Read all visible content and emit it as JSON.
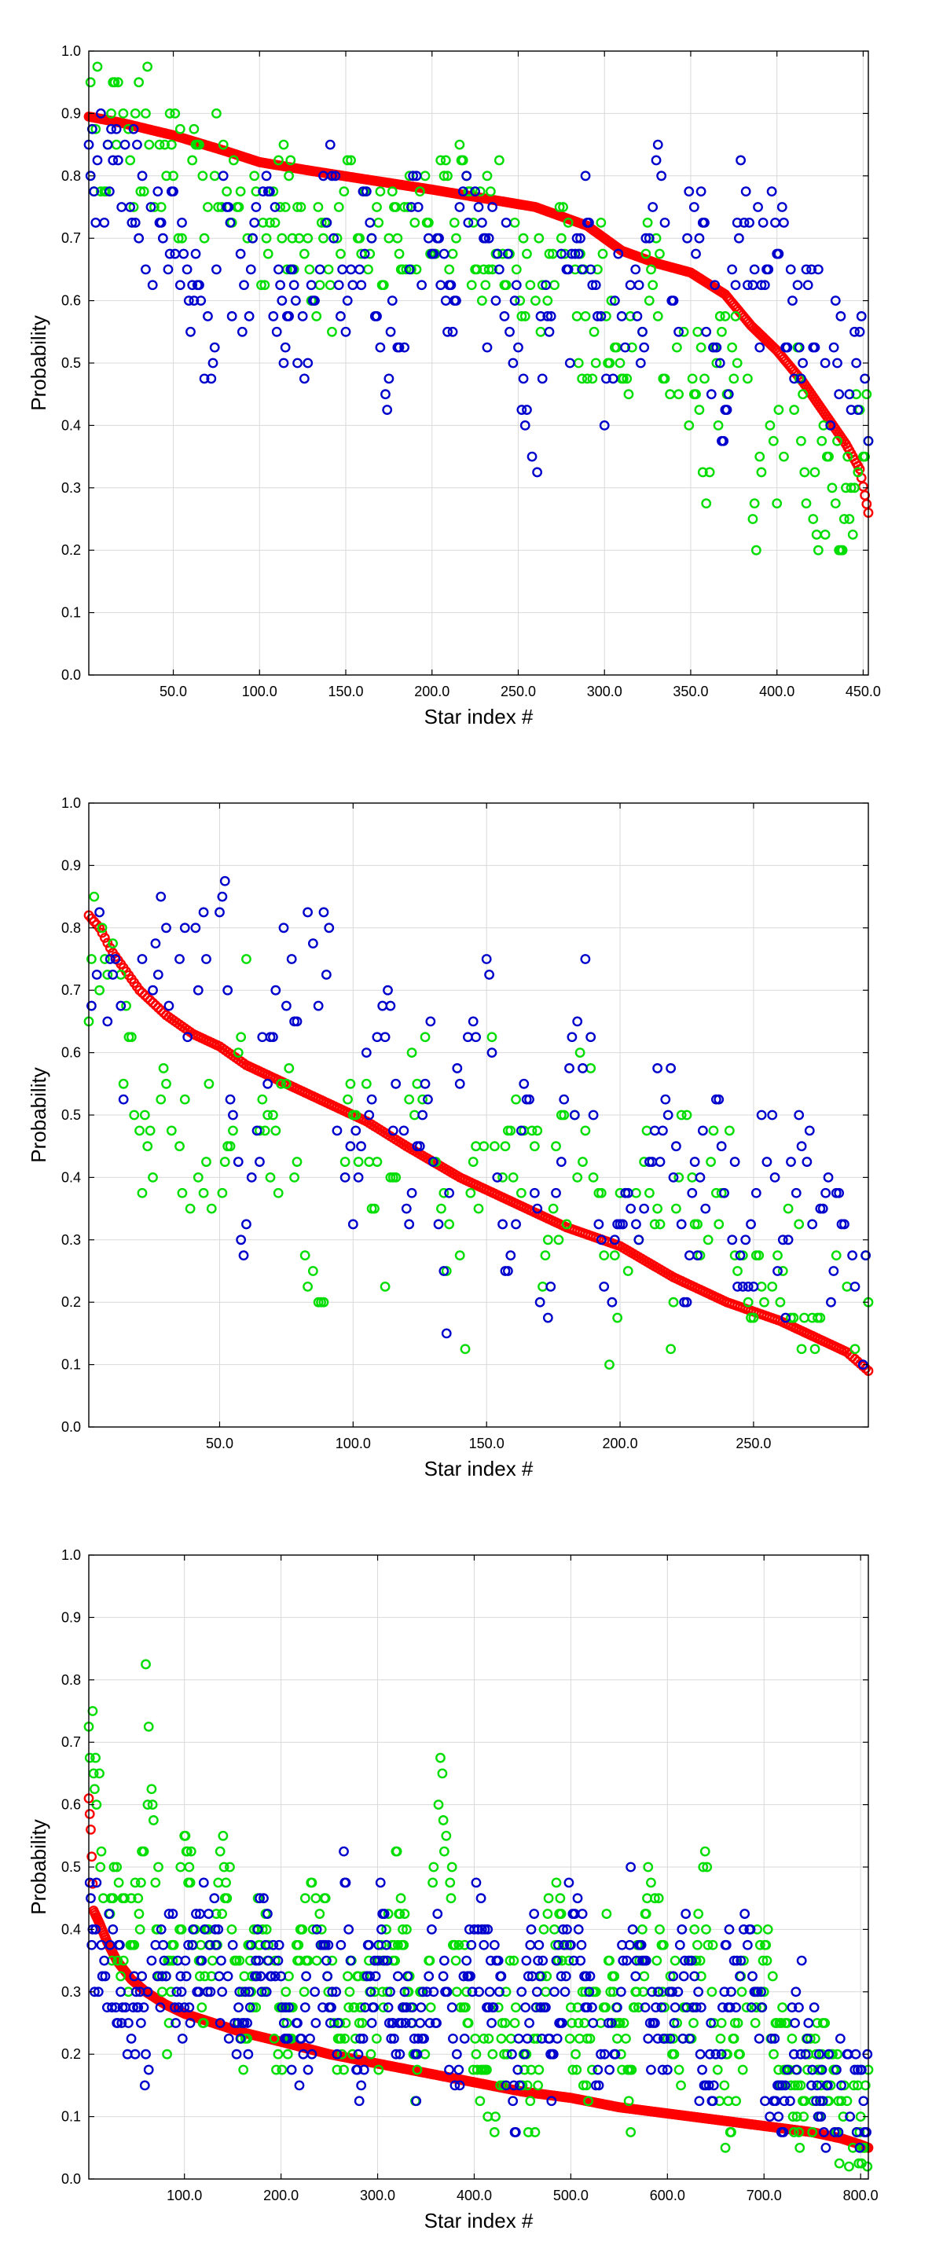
{
  "chart_data": [
    {
      "type": "scatter",
      "xlabel": "Star index #",
      "ylabel": "Probability",
      "xlim": [
        1,
        453
      ],
      "ylim": [
        0,
        1
      ],
      "xticks": [
        50,
        100,
        150,
        200,
        250,
        300,
        350,
        400,
        450
      ],
      "xtick_labels": [
        "50.0",
        "100.0",
        "150.0",
        "200.0",
        "250.0",
        "300.0",
        "350.0",
        "400.0",
        "450.0"
      ],
      "yticks": [
        0,
        0.1,
        0.2,
        0.3,
        0.4,
        0.5,
        0.6,
        0.7,
        0.8,
        0.9,
        1.0
      ],
      "ytick_labels": [
        "0.0",
        "0.1",
        "0.2",
        "0.3",
        "0.4",
        "0.5",
        "0.6",
        "0.7",
        "0.8",
        "0.9",
        "1.0"
      ],
      "grid": true,
      "n_points": 453,
      "series": [
        {
          "color": "#ff0000",
          "marker": "circle-open",
          "x": [
            1,
            20,
            50,
            80,
            100,
            130,
            160,
            200,
            230,
            260,
            290,
            310,
            330,
            350,
            370,
            385,
            400,
            415,
            430,
            440,
            448,
            453
          ],
          "y": [
            0.895,
            0.885,
            0.865,
            0.84,
            0.822,
            0.808,
            0.795,
            0.778,
            0.764,
            0.75,
            0.72,
            0.68,
            0.66,
            0.645,
            0.61,
            0.56,
            0.52,
            0.47,
            0.41,
            0.37,
            0.33,
            0.26
          ]
        },
        {
          "color": "#00dd00",
          "marker": "circle-open",
          "x": [
            1,
            10,
            20,
            30,
            40,
            50,
            60,
            70,
            80,
            90,
            100,
            110,
            120,
            130,
            140,
            150,
            160,
            170,
            180,
            190,
            200,
            210,
            220,
            230,
            240,
            250,
            260,
            270,
            280,
            290,
            300,
            310,
            320,
            330,
            340,
            350,
            360,
            370,
            380,
            390,
            400,
            410,
            420,
            430,
            440,
            450
          ],
          "y": [
            0.875,
            0.87,
            0.86,
            0.86,
            0.86,
            0.82,
            0.79,
            0.8,
            0.82,
            0.7,
            0.68,
            0.79,
            0.74,
            0.69,
            0.62,
            0.72,
            0.78,
            0.68,
            0.73,
            0.75,
            0.7,
            0.72,
            0.75,
            0.69,
            0.74,
            0.68,
            0.6,
            0.7,
            0.62,
            0.55,
            0.63,
            0.41,
            0.6,
            0.64,
            0.45,
            0.5,
            0.36,
            0.55,
            0.45,
            0.27,
            0.36,
            0.45,
            0.32,
            0.28,
            0.3,
            0.36
          ]
        },
        {
          "color": "#0000cc",
          "marker": "circle-open",
          "x": [
            1,
            10,
            20,
            30,
            40,
            50,
            60,
            70,
            80,
            90,
            100,
            110,
            120,
            130,
            140,
            150,
            160,
            170,
            180,
            190,
            200,
            210,
            220,
            230,
            240,
            250,
            260,
            270,
            280,
            290,
            300,
            310,
            320,
            330,
            340,
            350,
            360,
            370,
            380,
            390,
            400,
            410,
            420,
            430,
            440,
            450
          ],
          "y": [
            0.81,
            0.79,
            0.8,
            0.78,
            0.69,
            0.72,
            0.6,
            0.5,
            0.72,
            0.58,
            0.8,
            0.63,
            0.56,
            0.52,
            0.79,
            0.6,
            0.75,
            0.57,
            0.48,
            0.74,
            0.69,
            0.51,
            0.75,
            0.62,
            0.7,
            0.55,
            0.38,
            0.72,
            0.6,
            0.8,
            0.42,
            0.62,
            0.55,
            0.81,
            0.52,
            0.81,
            0.58,
            0.45,
            0.75,
            0.62,
            0.72,
            0.5,
            0.63,
            0.42,
            0.58,
            0.46
          ]
        }
      ]
    },
    {
      "type": "scatter",
      "xlabel": "Star index #",
      "ylabel": "Probability",
      "xlim": [
        1,
        293
      ],
      "ylim": [
        0,
        1
      ],
      "xticks": [
        50,
        100,
        150,
        200,
        250
      ],
      "xtick_labels": [
        "50.0",
        "100.0",
        "150.0",
        "200.0",
        "250.0"
      ],
      "yticks": [
        0,
        0.1,
        0.2,
        0.3,
        0.4,
        0.5,
        0.6,
        0.7,
        0.8,
        0.9,
        1.0
      ],
      "ytick_labels": [
        "0.0",
        "0.1",
        "0.2",
        "0.3",
        "0.4",
        "0.5",
        "0.6",
        "0.7",
        "0.8",
        "0.9",
        "1.0"
      ],
      "grid": true,
      "n_points": 293,
      "series": [
        {
          "color": "#ff0000",
          "marker": "circle-open",
          "x": [
            1,
            5,
            10,
            20,
            30,
            40,
            50,
            60,
            75,
            90,
            105,
            120,
            140,
            160,
            180,
            200,
            220,
            240,
            260,
            275,
            285,
            293
          ],
          "y": [
            0.82,
            0.8,
            0.76,
            0.7,
            0.66,
            0.63,
            0.61,
            0.58,
            0.55,
            0.52,
            0.49,
            0.45,
            0.4,
            0.36,
            0.32,
            0.29,
            0.24,
            0.2,
            0.17,
            0.14,
            0.12,
            0.09
          ]
        },
        {
          "color": "#00dd00",
          "marker": "circle-open",
          "x": [
            1,
            8,
            15,
            22,
            30,
            38,
            45,
            52,
            60,
            68,
            75,
            82,
            90,
            98,
            105,
            112,
            120,
            128,
            135,
            142,
            150,
            158,
            165,
            172,
            180,
            188,
            195,
            202,
            210,
            218,
            225,
            232,
            240,
            248,
            255,
            262,
            270,
            278,
            285,
            292
          ],
          "y": [
            0.76,
            0.75,
            0.64,
            0.43,
            0.57,
            0.4,
            0.49,
            0.33,
            0.77,
            0.4,
            0.53,
            0.19,
            0.17,
            0.57,
            0.44,
            0.3,
            0.64,
            0.52,
            0.36,
            0.17,
            0.57,
            0.44,
            0.49,
            0.28,
            0.43,
            0.54,
            0.15,
            0.36,
            0.41,
            0.17,
            0.49,
            0.33,
            0.42,
            0.19,
            0.28,
            0.3,
            0.18,
            0.17,
            0.18,
            0.17
          ]
        },
        {
          "color": "#0000cc",
          "marker": "circle-open",
          "x": [
            1,
            8,
            15,
            22,
            30,
            38,
            45,
            52,
            60,
            68,
            75,
            82,
            90,
            98,
            105,
            112,
            120,
            128,
            135,
            142,
            150,
            158,
            165,
            172,
            180,
            188,
            195,
            202,
            210,
            218,
            225,
            232,
            240,
            248,
            255,
            262,
            270,
            278,
            285,
            292
          ],
          "y": [
            0.77,
            0.7,
            0.56,
            0.75,
            0.76,
            0.69,
            0.74,
            0.76,
            0.25,
            0.64,
            0.7,
            0.75,
            0.77,
            0.33,
            0.59,
            0.68,
            0.38,
            0.61,
            0.25,
            0.69,
            0.71,
            0.2,
            0.52,
            0.2,
            0.49,
            0.65,
            0.2,
            0.35,
            0.39,
            0.57,
            0.26,
            0.45,
            0.41,
            0.2,
            0.48,
            0.26,
            0.46,
            0.32,
            0.22,
            0.2
          ]
        }
      ]
    },
    {
      "type": "scatter",
      "xlabel": "Star index #",
      "ylabel": "Probability",
      "xlim": [
        1,
        808
      ],
      "ylim": [
        0,
        1
      ],
      "xticks": [
        100,
        200,
        300,
        400,
        500,
        600,
        700,
        800
      ],
      "xtick_labels": [
        "100.0",
        "200.0",
        "300.0",
        "400.0",
        "500.0",
        "600.0",
        "700.0",
        "800.0"
      ],
      "yticks": [
        0,
        0.1,
        0.2,
        0.3,
        0.4,
        0.5,
        0.6,
        0.7,
        0.8,
        0.9,
        1.0
      ],
      "ytick_labels": [
        "0.0",
        "0.1",
        "0.2",
        "0.3",
        "0.4",
        "0.5",
        "0.6",
        "0.7",
        "0.8",
        "0.9",
        "1.0"
      ],
      "grid": true,
      "n_points": 808,
      "series": [
        {
          "color": "#ff0000",
          "marker": "circle-open",
          "x": [
            1,
            3,
            6,
            12,
            20,
            30,
            45,
            60,
            80,
            100,
            130,
            160,
            200,
            250,
            300,
            350,
            400,
            450,
            500,
            550,
            600,
            650,
            700,
            750,
            780,
            800,
            808
          ],
          "y": [
            0.61,
            0.56,
            0.43,
            0.41,
            0.38,
            0.35,
            0.32,
            0.3,
            0.28,
            0.265,
            0.25,
            0.235,
            0.22,
            0.2,
            0.185,
            0.17,
            0.155,
            0.14,
            0.13,
            0.115,
            0.105,
            0.095,
            0.085,
            0.075,
            0.065,
            0.055,
            0.05
          ]
        },
        {
          "color": "#00dd00",
          "marker": "circle-open",
          "x": [
            1,
            20,
            40,
            55,
            60,
            80,
            100,
            120,
            140,
            160,
            180,
            200,
            220,
            240,
            260,
            280,
            300,
            320,
            340,
            355,
            360,
            380,
            400,
            420,
            440,
            460,
            480,
            500,
            520,
            540,
            560,
            580,
            600,
            620,
            640,
            660,
            680,
            700,
            720,
            740,
            760,
            780,
            800
          ],
          "y": [
            0.73,
            0.46,
            0.37,
            0.42,
            0.73,
            0.25,
            0.5,
            0.33,
            0.48,
            0.26,
            0.4,
            0.2,
            0.36,
            0.45,
            0.18,
            0.33,
            0.24,
            0.46,
            0.2,
            0.3,
            0.73,
            0.4,
            0.22,
            0.15,
            0.32,
            0.11,
            0.45,
            0.26,
            0.2,
            0.38,
            0.12,
            0.48,
            0.3,
            0.22,
            0.46,
            0.1,
            0.28,
            0.34,
            0.18,
            0.12,
            0.2,
            0.09,
            0.1
          ]
        },
        {
          "color": "#0000cc",
          "marker": "circle-open",
          "x": [
            1,
            20,
            40,
            60,
            80,
            100,
            120,
            140,
            160,
            180,
            200,
            220,
            240,
            260,
            265,
            280,
            300,
            320,
            340,
            360,
            380,
            400,
            420,
            440,
            460,
            480,
            500,
            520,
            540,
            560,
            580,
            600,
            620,
            640,
            660,
            680,
            700,
            720,
            740,
            760,
            780,
            800
          ],
          "y": [
            0.4,
            0.35,
            0.3,
            0.22,
            0.38,
            0.27,
            0.41,
            0.33,
            0.24,
            0.38,
            0.3,
            0.2,
            0.36,
            0.28,
            0.5,
            0.18,
            0.4,
            0.26,
            0.22,
            0.35,
            0.17,
            0.42,
            0.3,
            0.14,
            0.36,
            0.22,
            0.4,
            0.28,
            0.16,
            0.44,
            0.26,
            0.2,
            0.35,
            0.14,
            0.3,
            0.38,
            0.2,
            0.16,
            0.28,
            0.12,
            0.18,
            0.11
          ]
        }
      ]
    }
  ]
}
